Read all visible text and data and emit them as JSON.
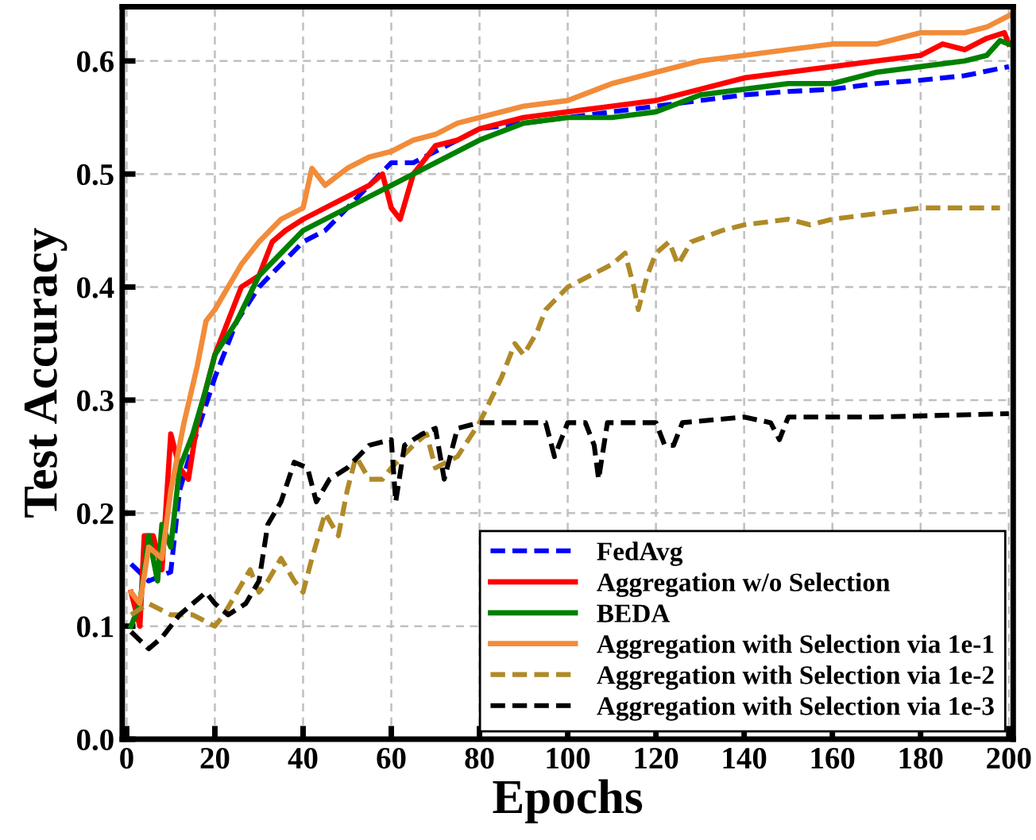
{
  "chart_data": {
    "type": "line",
    "xlabel": "Epochs",
    "ylabel": "Test Accuracy",
    "xlim": [
      -1,
      201
    ],
    "ylim": [
      0,
      0.648
    ],
    "xticks": [
      0,
      20,
      40,
      60,
      80,
      100,
      120,
      140,
      160,
      180,
      200
    ],
    "yticks": [
      {
        "value": 0,
        "label": "0.0"
      },
      0.1,
      0.2,
      0.3,
      0.4,
      0.5,
      0.6
    ],
    "grid": true,
    "legend": "bottom right",
    "marker": "none",
    "series": [
      {
        "name": "FedAvg",
        "color": "#0000ff",
        "line_style": "dashed",
        "x": [
          1,
          5,
          10,
          12,
          15,
          20,
          25,
          30,
          35,
          40,
          45,
          50,
          55,
          60,
          65,
          70,
          75,
          80,
          90,
          100,
          110,
          120,
          130,
          140,
          150,
          160,
          170,
          180,
          190,
          200
        ],
        "values": [
          0.155,
          0.14,
          0.148,
          0.22,
          0.26,
          0.32,
          0.37,
          0.4,
          0.42,
          0.44,
          0.45,
          0.47,
          0.49,
          0.51,
          0.51,
          0.52,
          0.53,
          0.54,
          0.545,
          0.55,
          0.555,
          0.56,
          0.565,
          0.57,
          0.573,
          0.575,
          0.58,
          0.583,
          0.587,
          0.595
        ]
      },
      {
        "name": "Aggregation w/o Selection",
        "color": "#ff0000",
        "line_style": "solid",
        "x": [
          1,
          3,
          4,
          6,
          8,
          10,
          12,
          14,
          16,
          20,
          23,
          26,
          30,
          33,
          36,
          40,
          45,
          50,
          55,
          58,
          60,
          62,
          65,
          70,
          75,
          80,
          90,
          100,
          110,
          120,
          130,
          140,
          150,
          160,
          170,
          180,
          185,
          190,
          195,
          199,
          200
        ],
        "values": [
          0.13,
          0.1,
          0.18,
          0.18,
          0.15,
          0.27,
          0.24,
          0.23,
          0.28,
          0.34,
          0.37,
          0.4,
          0.41,
          0.44,
          0.45,
          0.46,
          0.47,
          0.48,
          0.49,
          0.5,
          0.47,
          0.46,
          0.5,
          0.525,
          0.53,
          0.54,
          0.55,
          0.555,
          0.56,
          0.565,
          0.575,
          0.585,
          0.59,
          0.595,
          0.6,
          0.605,
          0.615,
          0.61,
          0.62,
          0.625,
          0.615
        ]
      },
      {
        "name": "BEDA",
        "color": "#008000",
        "line_style": "solid",
        "x": [
          1,
          3,
          5,
          7,
          8,
          10,
          12,
          15,
          18,
          20,
          25,
          30,
          35,
          40,
          45,
          50,
          55,
          60,
          65,
          70,
          75,
          80,
          90,
          100,
          110,
          120,
          130,
          140,
          150,
          160,
          170,
          180,
          190,
          195,
          198,
          200
        ],
        "values": [
          0.1,
          0.12,
          0.18,
          0.14,
          0.19,
          0.17,
          0.24,
          0.27,
          0.31,
          0.34,
          0.37,
          0.41,
          0.43,
          0.45,
          0.46,
          0.47,
          0.48,
          0.49,
          0.5,
          0.51,
          0.52,
          0.53,
          0.545,
          0.55,
          0.55,
          0.555,
          0.57,
          0.575,
          0.58,
          0.58,
          0.59,
          0.595,
          0.6,
          0.605,
          0.618,
          0.615
        ]
      },
      {
        "name": "Aggregation with Selection via 1e-1",
        "color": "#f28c3a",
        "line_style": "solid",
        "x": [
          1,
          3,
          5,
          8,
          10,
          13,
          16,
          18,
          20,
          23,
          26,
          30,
          35,
          40,
          42,
          45,
          50,
          55,
          60,
          65,
          70,
          75,
          80,
          90,
          100,
          110,
          120,
          130,
          140,
          150,
          160,
          170,
          180,
          190,
          195,
          200
        ],
        "values": [
          0.13,
          0.12,
          0.17,
          0.16,
          0.22,
          0.28,
          0.33,
          0.37,
          0.38,
          0.4,
          0.42,
          0.44,
          0.46,
          0.47,
          0.505,
          0.49,
          0.505,
          0.515,
          0.52,
          0.53,
          0.535,
          0.545,
          0.55,
          0.56,
          0.565,
          0.58,
          0.59,
          0.6,
          0.605,
          0.61,
          0.615,
          0.615,
          0.625,
          0.625,
          0.63,
          0.64
        ]
      },
      {
        "name": "Aggregation with Selection via 1e-2",
        "color": "#b08a28",
        "line_style": "dashed",
        "x": [
          1,
          5,
          10,
          15,
          20,
          22,
          25,
          28,
          30,
          32,
          35,
          38,
          40,
          42,
          45,
          48,
          50,
          52,
          55,
          58,
          60,
          65,
          68,
          70,
          75,
          80,
          85,
          88,
          90,
          93,
          95,
          100,
          105,
          110,
          113,
          115,
          116,
          118,
          120,
          123,
          125,
          128,
          135,
          140,
          150,
          155,
          160,
          170,
          180,
          190,
          198
        ],
        "values": [
          0.11,
          0.12,
          0.11,
          0.11,
          0.1,
          0.11,
          0.13,
          0.15,
          0.13,
          0.14,
          0.16,
          0.14,
          0.13,
          0.16,
          0.2,
          0.18,
          0.22,
          0.25,
          0.23,
          0.23,
          0.24,
          0.26,
          0.27,
          0.24,
          0.25,
          0.28,
          0.32,
          0.35,
          0.34,
          0.36,
          0.38,
          0.4,
          0.41,
          0.42,
          0.43,
          0.4,
          0.38,
          0.41,
          0.43,
          0.44,
          0.42,
          0.44,
          0.45,
          0.455,
          0.46,
          0.455,
          0.46,
          0.465,
          0.47,
          0.47,
          0.47
        ]
      },
      {
        "name": "Aggregation with Selection via 1e-3",
        "color": "#000000",
        "line_style": "dashed",
        "x": [
          1,
          5,
          8,
          12,
          15,
          18,
          20,
          23,
          27,
          30,
          32,
          35,
          38,
          41,
          43,
          46,
          50,
          55,
          60,
          61,
          63,
          67,
          70,
          72,
          75,
          80,
          88,
          95,
          97,
          100,
          104,
          106,
          107,
          109,
          115,
          120,
          122,
          124,
          126,
          140,
          146,
          148,
          150,
          170,
          200
        ],
        "values": [
          0.095,
          0.08,
          0.09,
          0.11,
          0.12,
          0.13,
          0.12,
          0.11,
          0.12,
          0.14,
          0.19,
          0.21,
          0.245,
          0.24,
          0.21,
          0.23,
          0.24,
          0.26,
          0.265,
          0.21,
          0.26,
          0.27,
          0.275,
          0.23,
          0.275,
          0.28,
          0.28,
          0.28,
          0.25,
          0.28,
          0.28,
          0.26,
          0.23,
          0.28,
          0.28,
          0.28,
          0.26,
          0.26,
          0.28,
          0.285,
          0.28,
          0.265,
          0.285,
          0.285,
          0.288
        ]
      }
    ]
  }
}
